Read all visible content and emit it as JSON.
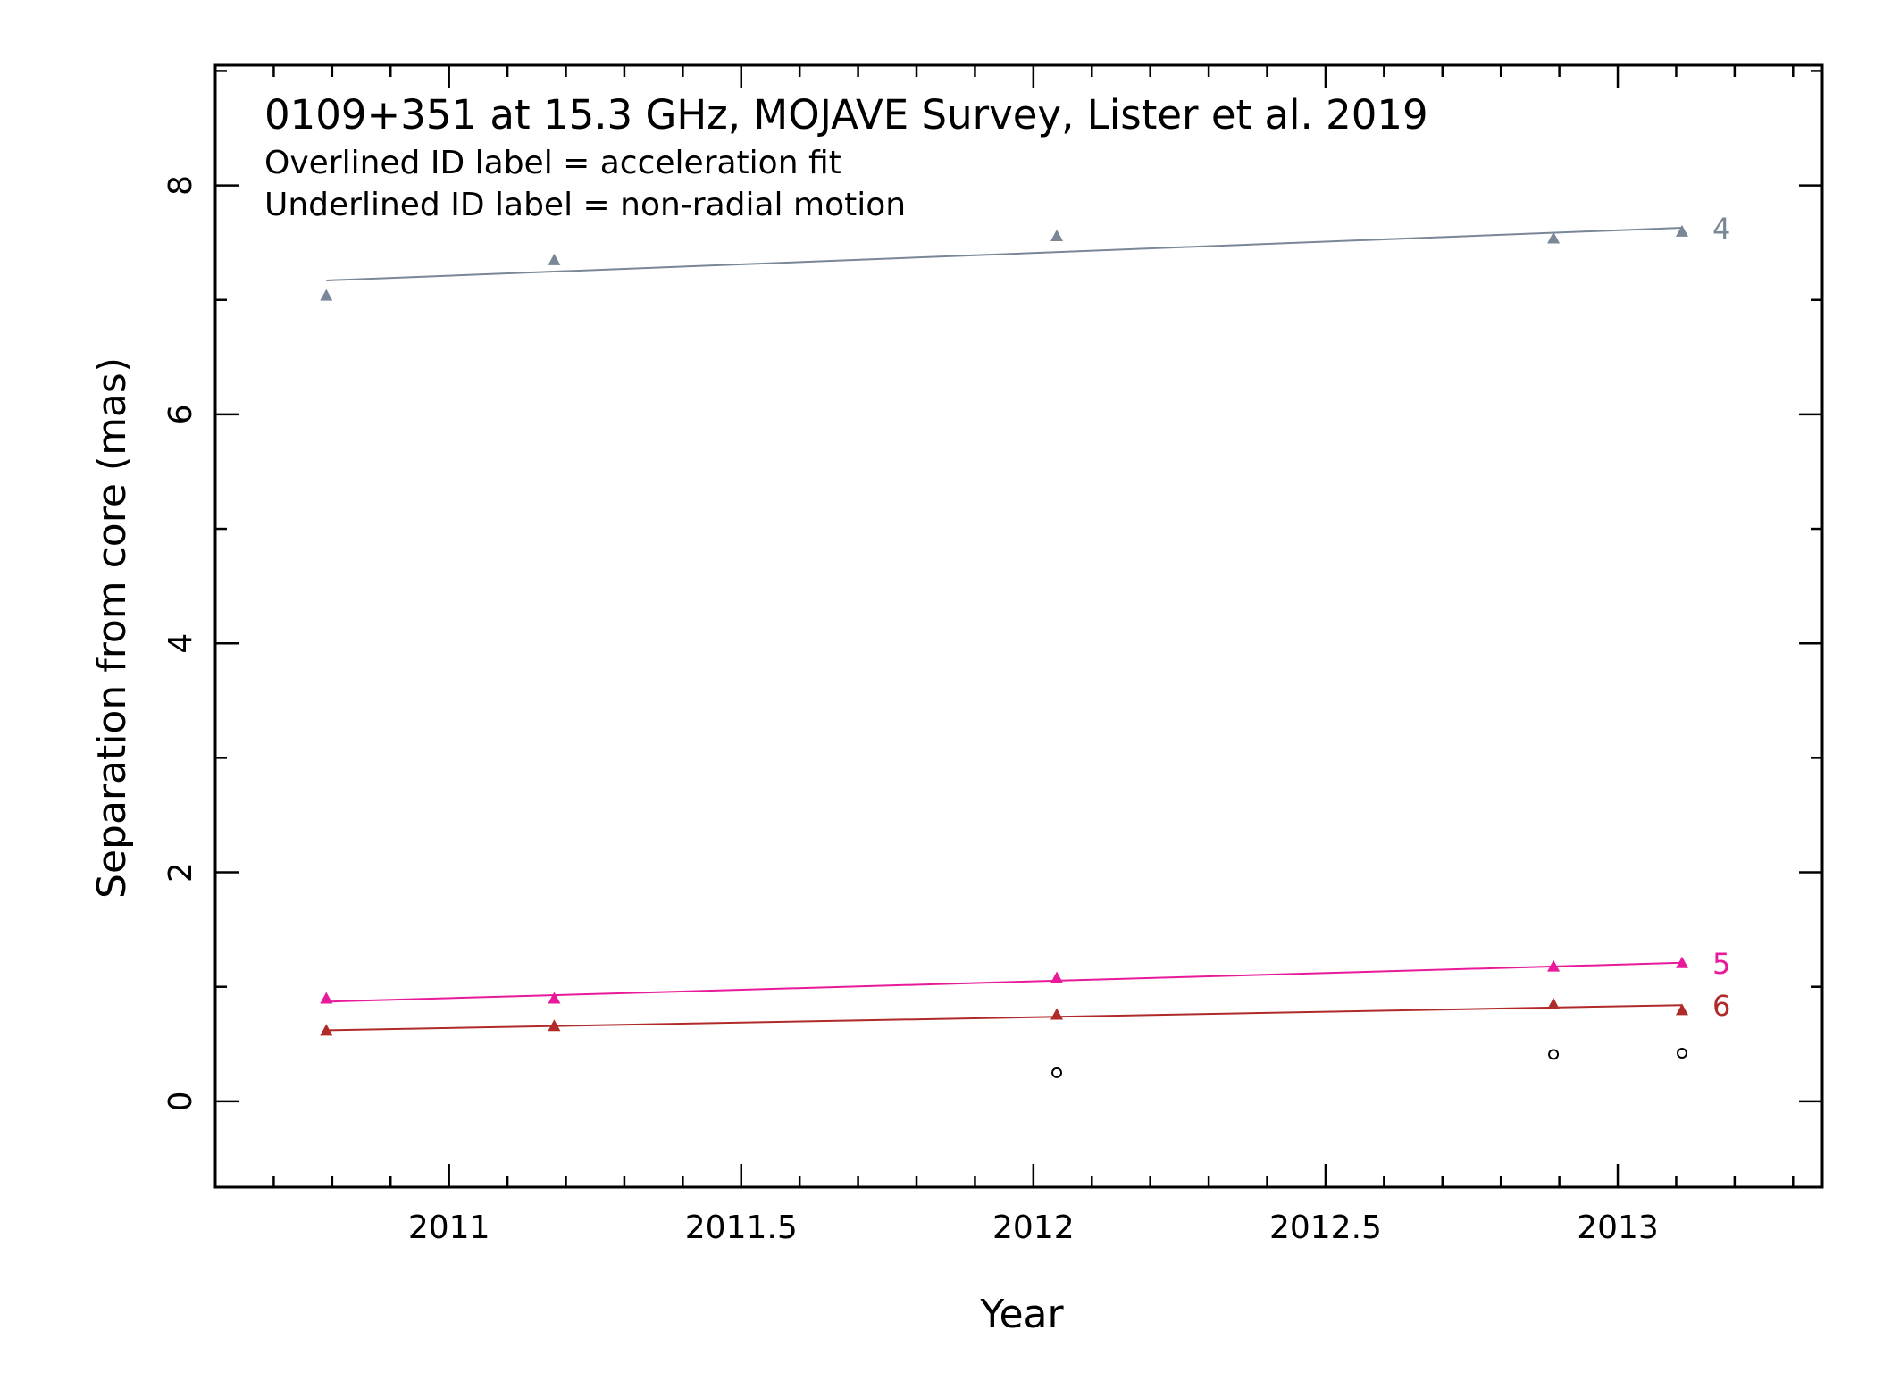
{
  "chart_data": {
    "type": "scatter",
    "title": "0109+351 at 15.3 GHz, MOJAVE Survey, Lister et al. 2019",
    "notes": [
      "Overlined ID label = acceleration fit",
      "Underlined ID label = non-radial motion"
    ],
    "xlabel": "Year",
    "ylabel": "Separation from core (mas)",
    "xlim": [
      2010.6,
      2013.35
    ],
    "ylim": [
      -0.75,
      9.05
    ],
    "x_ticks": [
      2011,
      2011.5,
      2012,
      2012.5,
      2013
    ],
    "x_tick_labels": [
      "2011",
      "2011.5",
      "2012",
      "2012.5",
      "2013"
    ],
    "y_ticks": [
      0,
      2,
      4,
      6,
      8
    ],
    "y_tick_labels": [
      "0",
      "2",
      "4",
      "6",
      "8"
    ],
    "grid": false,
    "series": [
      {
        "name": "4",
        "color": "#7a8797",
        "marker": "triangle",
        "x": [
          2010.79,
          2011.18,
          2012.04,
          2012.89,
          2013.11
        ],
        "y": [
          7.04,
          7.35,
          7.56,
          7.54,
          7.6
        ],
        "fit": {
          "x": [
            2010.79,
            2013.11
          ],
          "y": [
            7.17,
            7.63
          ]
        }
      },
      {
        "name": "5",
        "color": "#e8199a",
        "marker": "triangle",
        "x": [
          2010.79,
          2011.18,
          2012.04,
          2012.89,
          2013.11
        ],
        "y": [
          0.9,
          0.9,
          1.08,
          1.18,
          1.21
        ],
        "fit": {
          "x": [
            2010.79,
            2013.11
          ],
          "y": [
            0.87,
            1.21
          ]
        }
      },
      {
        "name": "6",
        "color": "#b02a2a",
        "marker": "triangle",
        "x": [
          2010.79,
          2011.18,
          2012.04,
          2012.89,
          2013.11
        ],
        "y": [
          0.62,
          0.66,
          0.76,
          0.85,
          0.8
        ],
        "fit": {
          "x": [
            2010.79,
            2013.11
          ],
          "y": [
            0.62,
            0.84
          ]
        }
      },
      {
        "color": "#000000",
        "marker": "circle-open",
        "x": [
          2012.04,
          2012.89,
          2013.11
        ],
        "y": [
          0.25,
          0.41,
          0.42
        ]
      }
    ]
  }
}
